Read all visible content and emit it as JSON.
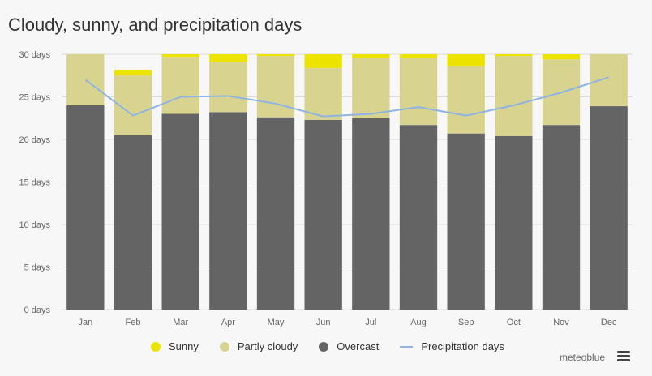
{
  "colors": {
    "sunny": "#ece300",
    "partly_cloudy": "#d8d490",
    "overcast": "#646464",
    "precipitation": "#8fb4e3",
    "grid": "#dddddd"
  },
  "chart_data": {
    "type": "bar",
    "title": "Cloudy, sunny, and precipitation days",
    "categories": [
      "Jan",
      "Feb",
      "Mar",
      "Apr",
      "May",
      "Jun",
      "Jul",
      "Aug",
      "Sep",
      "Oct",
      "Nov",
      "Dec"
    ],
    "ylim": [
      0,
      30
    ],
    "yticks": [
      "0 days",
      "5 days",
      "10 days",
      "15 days",
      "20 days",
      "25 days",
      "30 days"
    ],
    "stacked": true,
    "grid": true,
    "legend_position": "bottom",
    "series": [
      {
        "name": "Overcast",
        "type": "bar",
        "color": "#646464",
        "values": [
          24.0,
          20.5,
          23.0,
          23.2,
          22.6,
          22.3,
          22.5,
          21.7,
          20.7,
          20.4,
          21.7,
          23.9
        ]
      },
      {
        "name": "Partly cloudy",
        "type": "bar",
        "color": "#d8d490",
        "values": [
          7.0,
          7.0,
          6.7,
          5.9,
          7.2,
          6.1,
          7.1,
          7.9,
          7.9,
          9.4,
          7.7,
          7.1
        ]
      },
      {
        "name": "Sunny",
        "type": "bar",
        "color": "#ece300",
        "values": [
          0.0,
          0.7,
          1.3,
          1.9,
          1.2,
          1.6,
          1.4,
          1.4,
          1.4,
          1.2,
          0.6,
          0.0
        ]
      },
      {
        "name": "Precipitation days",
        "type": "line",
        "color": "#8fb4e3",
        "values": [
          27.0,
          22.8,
          25.0,
          25.1,
          24.2,
          22.7,
          23.0,
          23.8,
          22.8,
          24.0,
          25.5,
          27.3
        ]
      }
    ]
  },
  "legend": {
    "sunny": "Sunny",
    "partly_cloudy": "Partly cloudy",
    "overcast": "Overcast",
    "precipitation": "Precipitation days"
  },
  "brand": "meteoblue"
}
